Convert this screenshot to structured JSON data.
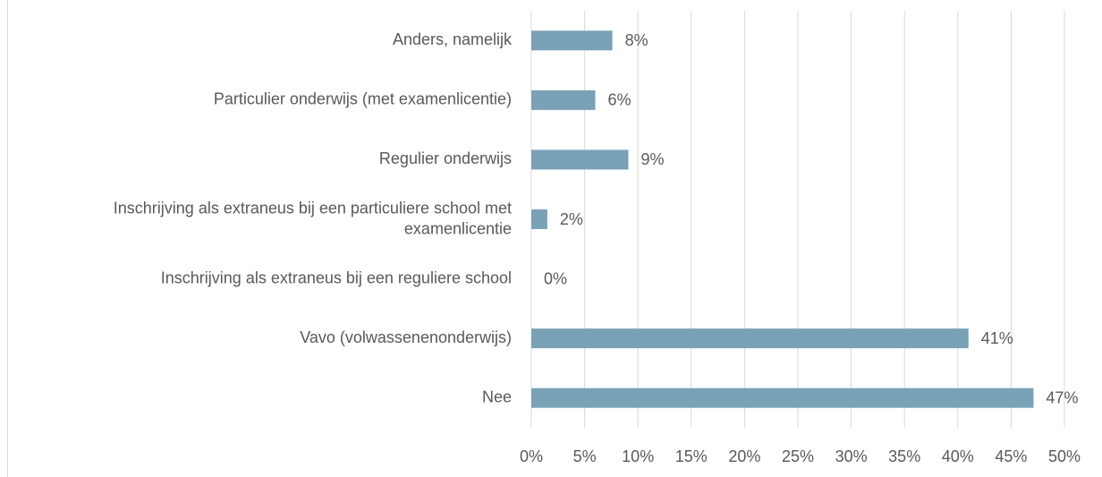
{
  "chart_data": {
    "type": "bar",
    "orientation": "horizontal",
    "categories": [
      "Anders, namelijk",
      "Particulier onderwijs (met examenlicentie)",
      "Regulier onderwijs",
      "Inschrijving als extraneus bij een particuliere school met examenlicentie",
      "Inschrijving als extraneus bij een reguliere school",
      "Vavo (volwassenenonderwijs)",
      "Nee"
    ],
    "values": [
      7.6,
      6.0,
      9.1,
      1.5,
      0,
      41.0,
      47.1
    ],
    "value_labels": [
      "8%",
      "6%",
      "9%",
      "2%",
      "0%",
      "41%",
      "47%"
    ],
    "color": "#79a2b7",
    "xlim": [
      0,
      50
    ],
    "xticks": [
      {
        "value": 0,
        "label": "0%"
      },
      {
        "value": 5,
        "label": "5%"
      },
      {
        "value": 10,
        "label": "10%"
      },
      {
        "value": 15,
        "label": "15%"
      },
      {
        "value": 20,
        "label": "20%"
      },
      {
        "value": 25,
        "label": "25%"
      },
      {
        "value": 30,
        "label": "30%"
      },
      {
        "value": 35,
        "label": "35%"
      },
      {
        "value": 40,
        "label": "40%"
      },
      {
        "value": 45,
        "label": "45%"
      },
      {
        "value": 50,
        "label": "50%"
      }
    ],
    "grid": true
  }
}
